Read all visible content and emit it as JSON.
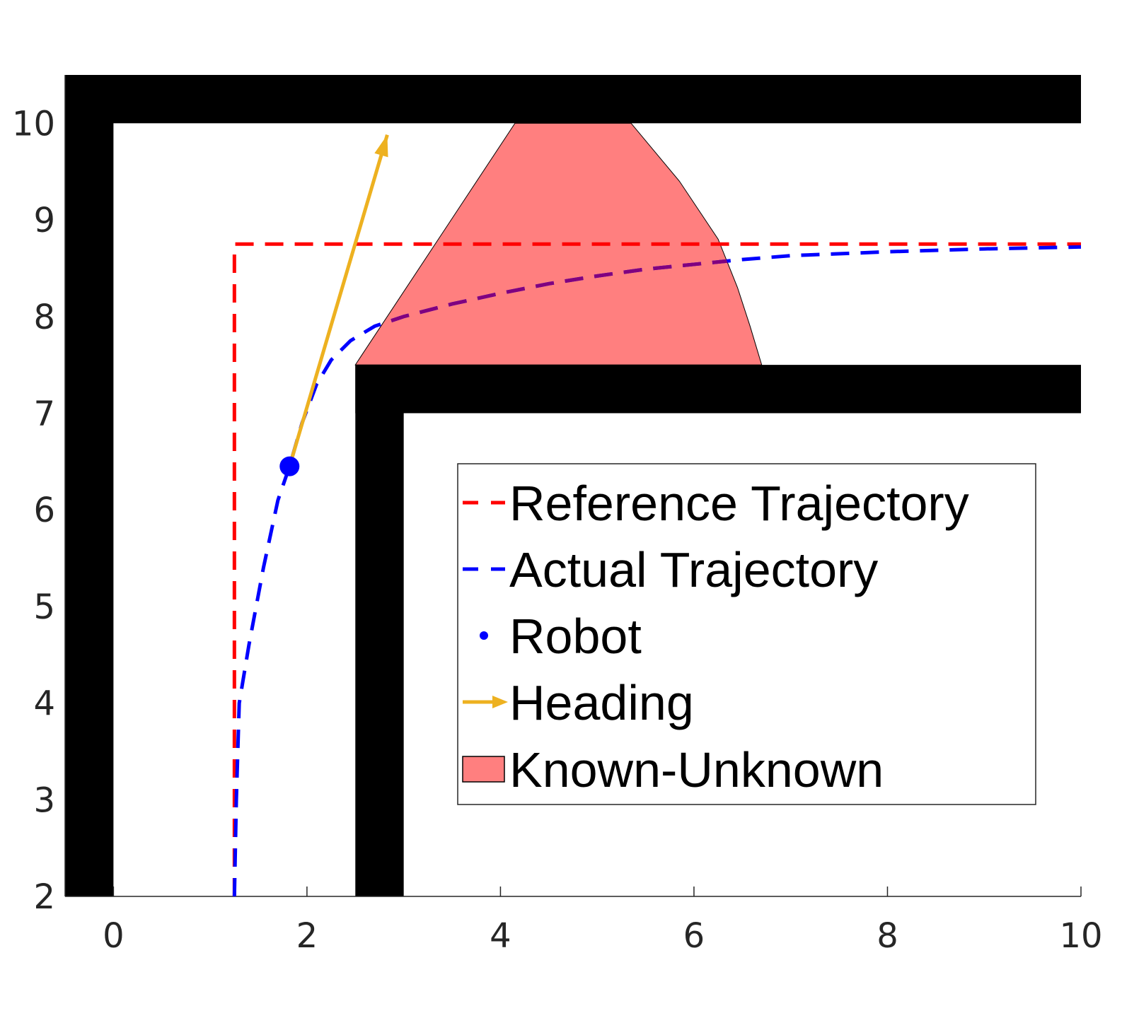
{
  "chart_data": {
    "type": "line",
    "title": "",
    "xlabel": "",
    "ylabel": "",
    "xlim": [
      -0.5,
      10
    ],
    "ylim": [
      2,
      10.5
    ],
    "x_ticks": [
      "0",
      "2",
      "4",
      "6",
      "8",
      "10"
    ],
    "y_ticks": [
      "2",
      "3",
      "4",
      "5",
      "6",
      "7",
      "8",
      "9",
      "10"
    ],
    "grid": false,
    "legend_position": "lower-right",
    "walls": [
      {
        "x": [
          -0.5,
          0
        ],
        "y": [
          2,
          10.5
        ]
      },
      {
        "x": [
          -0.5,
          10
        ],
        "y": [
          10,
          10.5
        ]
      },
      {
        "x": [
          2.5,
          3
        ],
        "y": [
          2,
          7.5
        ]
      },
      {
        "x": [
          2.5,
          10
        ],
        "y": [
          7,
          7.5
        ]
      }
    ],
    "series": [
      {
        "name": "Reference Trajectory",
        "color": "#ff0000",
        "style": "dashed",
        "x": [
          1.25,
          1.25,
          10
        ],
        "y": [
          2,
          8.75,
          8.75
        ]
      },
      {
        "name": "Actual Trajectory",
        "color": "#0000ff",
        "style": "dashed",
        "x": [
          1.25,
          1.27,
          1.3,
          1.4,
          1.55,
          1.7,
          1.82,
          1.95,
          2.1,
          2.25,
          2.45,
          2.7,
          3.0,
          3.5,
          4.0,
          4.5,
          5.0,
          5.5,
          6.0,
          6.5,
          7.0,
          8.0,
          9.0,
          10.0
        ],
        "y": [
          2,
          3,
          4,
          4.6,
          5.4,
          6.1,
          6.45,
          6.9,
          7.3,
          7.55,
          7.75,
          7.9,
          8.0,
          8.13,
          8.24,
          8.34,
          8.42,
          8.49,
          8.54,
          8.59,
          8.63,
          8.67,
          8.7,
          8.72
        ]
      },
      {
        "name": "Robot",
        "color": "#0000ff",
        "marker": "dot",
        "x": [
          1.82
        ],
        "y": [
          6.45
        ]
      },
      {
        "name": "Heading",
        "color": "#edb120",
        "type": "arrow",
        "x": [
          1.82,
          2.83
        ],
        "y": [
          6.45,
          9.88
        ]
      },
      {
        "name": "Known-Unknown",
        "color": "#ff7f7f",
        "type": "area",
        "x": [
          2.5,
          4.15,
          5.35,
          5.85,
          6.25,
          6.45,
          6.58,
          6.7
        ],
        "y": [
          7.5,
          10,
          10,
          9.4,
          8.8,
          8.3,
          7.9,
          7.5
        ]
      }
    ]
  }
}
